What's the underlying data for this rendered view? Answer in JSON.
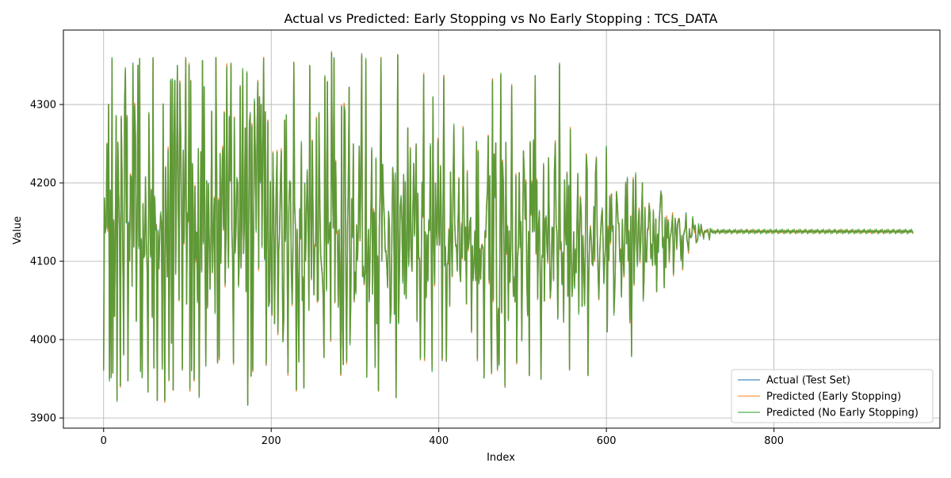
{
  "chart_data": {
    "type": "line",
    "title": "Actual vs Predicted: Early Stopping vs No Early Stopping : TCS_DATA",
    "xlabel": "Index",
    "ylabel": "Value",
    "xlim": [
      -48,
      998
    ],
    "ylim": [
      3887,
      4395
    ],
    "x_ticks": [
      0,
      200,
      400,
      600,
      800
    ],
    "y_ticks": [
      3900,
      4000,
      4100,
      4200,
      4300
    ],
    "grid": true,
    "legend_position": "lower right",
    "n_points": 951,
    "x": "0..950",
    "series": [
      {
        "name": "Actual (Test Set)",
        "color": "#1f77b4",
        "alpha": 0.7,
        "values": [
          3963,
          4180,
          4138,
          4143,
          4250,
          4140,
          4300,
          3950,
          4190,
          3953,
          4358,
          3958,
          4150,
          4030,
          4149,
          4285,
          3923,
          4250,
          4186,
          4138,
          3941,
          4285,
          4210,
          4100,
          3980,
          4300,
          4344,
          4149,
          4286,
          3947,
          4150,
          4100,
          4210,
          4205,
          4068,
          4353,
          4118,
          4300,
          4260,
          4024,
          4150,
          4350,
          4119,
          4358,
          3961,
          4127,
          3952,
          4171,
          4105,
          4110,
          4207,
          4130,
          4086,
          3934,
          4287,
          4187,
          4108,
          4190,
          4030,
          4358,
          3965,
          4180,
          4140,
          4147,
          3922,
          4140,
          4090,
          4133,
          4160,
          4148,
          3965,
          4300,
          4100,
          3921,
          4220,
          4150,
          4080,
          4244,
          3948,
          4150,
          4330,
          3996,
          4330,
          3936,
          4260,
          4330,
          4085,
          4201,
          4350,
          4180,
          4051,
          4330,
          4260,
          4160,
          3961,
          4242,
          4122,
          4200,
          4360,
          4045,
          4162,
          4150,
          4351,
          3935,
          4330,
          3963,
          4224,
          4166,
          3948,
          4196,
          4101,
          4137,
          4050,
          4243,
          3928,
          4090,
          4240,
          4086,
          4356,
          4125,
          4322,
          4110,
          3966,
          4203,
          4040,
          4199,
          4130,
          4064,
          4128,
          4290,
          4087,
          4135,
          4180,
          4036,
          4359,
          4202,
          3970,
          4178,
          3975,
          4237,
          4100,
          4189,
          4245,
          4140,
          4290,
          4069,
          4130,
          4350,
          4150,
          4093,
          4283,
          4203,
          4350,
          4142,
          4102,
          3970,
          4284,
          4110,
          4142,
          4204,
          4200,
          4070,
          4110,
          4324,
          4091,
          4152,
          4343,
          4110,
          4152,
          4269,
          4063,
          4340,
          3917,
          4131,
          4276,
          4290,
          3953,
          4274,
          3960,
          4140,
          4304,
          4235,
          4140,
          4253,
          4330,
          4090,
          4310,
          4200,
          4300,
          4120,
          4252,
          4360,
          4102,
          4291,
          3967,
          4140,
          4280,
          4042,
          4050,
          4200,
          4103,
          4031,
          4238,
          4177,
          4020,
          4129,
          4193,
          4240,
          4007,
          4114,
          4138,
          4200,
          4242,
          4123,
          3998,
          4026,
          4280,
          4128,
          4286,
          4115,
          3956,
          4162,
          4200,
          4200,
          4088,
          4045,
          4120,
          4352,
          4170,
          4140,
          3936,
          4141,
          4074,
          3973,
          4165,
          4130,
          4250,
          4050,
          4080,
          3938,
          4200,
          4100,
          4151,
          4214,
          4158,
          4040,
          4349,
          4170,
          4077,
          4254,
          4152,
          4057,
          4120,
          4120,
          4283,
          4049,
          4051,
          4287,
          4180,
          4110,
          4094,
          4083,
          4053,
          3978,
          4334,
          4139,
          4065,
          4328,
          4124,
          4133,
          4150,
          3998,
          4366,
          4210,
          4142,
          4360,
          4047,
          4227,
          4136,
          4138,
          4044,
          4140,
          4072,
          3955,
          4298,
          4014,
          3968,
          4300,
          4290,
          4100,
          3971,
          4140,
          4196,
          4322,
          3996,
          4050,
          4180,
          4130,
          4250,
          4048,
          4086,
          4061,
          4145,
          4103,
          4138,
          4247,
          4126,
          4209,
          4365,
          4080,
          4094,
          4070,
          4087,
          4356,
          3952,
          4100,
          4140,
          4050,
          4107,
          4165,
          4242,
          4058,
          4165,
          4161,
          3966,
          4230,
          4021,
          4104,
          3935,
          4143,
          4190,
          4360,
          4100,
          4224,
          4179,
          4154,
          4115,
          4112,
          4094,
          4066,
          4164,
          4149,
          4021,
          4040,
          4130,
          4220,
          4199,
          4033,
          4210,
          3926,
          4136,
          4363,
          4022,
          4084,
          4170,
          4181,
          4151,
          4075,
          4210,
          4059,
          4200,
          4053,
          4115,
          4270,
          4096,
          4123,
          4245,
          4105,
          4088,
          4163,
          4225,
          4135,
          4185,
          4250,
          4023,
          4187,
          4103,
          4102,
          3977,
          4092,
          4201,
          4156,
          4338,
          3974,
          4137,
          4056,
          4133,
          4076,
          4151,
          4140,
          4247,
          4104,
          3962,
          4309,
          4127,
          4070,
          4200,
          4140,
          4121,
          4256,
          4137,
          4122,
          4220,
          4154,
          3973,
          4155,
          4337,
          4094,
          4119,
          3972,
          4097,
          4097,
          4140,
          4045,
          4213,
          4128,
          4080,
          4196,
          4272,
          4147,
          4122,
          4120,
          4089,
          4152,
          4206,
          4088,
          4074,
          4147,
          4104,
          4271,
          4180,
          4102,
          4141,
          4046,
          4215,
          4115,
          4125,
          4148,
          4156,
          4009,
          4120,
          4078,
          4097,
          4139,
          4075,
          4253,
          3973,
          4240,
          4074,
          4115,
          4079,
          4119,
          4120,
          4115,
          3951,
          4139,
          4130,
          4170,
          4190,
          4260,
          4073,
          4209,
          4026,
          3957,
          4332,
          4050,
          4237,
          4181,
          4251,
          4052,
          3962,
          4040,
          3967,
          4127,
          4337,
          4035,
          4229,
          4200,
          4103,
          3939,
          4252,
          4109,
          4144,
          4027,
          4138,
          4075,
          4120,
          4324,
          4112,
          4055,
          4080,
          4048,
          4210,
          3970,
          4103,
          4120,
          4213,
          4120,
          4150,
          4000,
          4115,
          4241,
          4212,
          4154,
          4203,
          4075,
          4032,
          4136,
          3955,
          4250,
          4160,
          4202,
          4137,
          4255,
          4138,
          4337,
          4109,
          4203,
          4054,
          4145,
          4165,
          4078,
          3950,
          4105,
          4105,
          4225,
          4049,
          4153,
          4156,
          4120,
          4099,
          4232,
          4127,
          4053,
          4072,
          4142,
          4143,
          4075,
          4215,
          4253,
          4147,
          4136,
          4026,
          4116,
          4350,
          4116,
          4125,
          4070,
          4112,
          4022,
          4204,
          4139,
          4121,
          4214,
          4055,
          4197,
          3961,
          4269,
          4116,
          4055,
          4085,
          4137,
          4067,
          4114,
          4086,
          4155,
          4212,
          4035,
          4137,
          4182,
          4160,
          4043,
          4130,
          4093,
          4046,
          4134,
          4237,
          4216,
          3955,
          4080,
          4129,
          4145,
          4126,
          4098,
          4094,
          4170,
          4100,
          4211,
          4233,
          4137,
          4090,
          4051,
          4109,
          4133,
          4155,
          4168,
          4127,
          4073,
          4101,
          4120,
          4244,
          4010,
          4143,
          4101,
          4183,
          4124,
          4186,
          4138,
          4145,
          4034,
          4062,
          4116,
          4187,
          4175,
          4148,
          4148,
          4102,
          4114,
          4056,
          4152,
          4103,
          4080,
          4140,
          4201,
          4122,
          4207,
          4100,
          4138,
          4022,
          4157,
          3981,
          4149,
          4205,
          4070,
          4136,
          4210,
          4121,
          4096,
          4146,
          4167,
          4100,
          4126,
          4159,
          4200,
          4052,
          4080,
          4169,
          4099,
          4100,
          4139,
          4142,
          4174,
          4160,
          4105,
          4120,
          4096,
          4163,
          4128,
          4098,
          4153,
          4063,
          4133,
          4112,
          4150,
          4168,
          4190,
          4183,
          4119,
          4129,
          4067,
          4153,
          4092,
          4156,
          4130,
          4152,
          4100,
          4130,
          4134,
          4145,
          4161,
          4083,
          4114,
          4153,
          4143,
          4115,
          4148,
          4154,
          4153,
          4133,
          4101,
          4133,
          4089,
          4133,
          4139,
          4141,
          4162,
          4128,
          4122,
          4111,
          4141,
          4133,
          4130,
          4134,
          4155,
          4144,
          4138,
          4146,
          4126,
          4125,
          4129,
          4146,
          4136,
          4132,
          4147,
          4140,
          4136,
          4130,
          4137,
          4138,
          4137,
          4139,
          4141,
          4133,
          4129,
          4140,
          4139,
          4138,
          4136,
          4139,
          4138,
          4137,
          4137,
          4138,
          4138,
          4138,
          4138,
          4138,
          4138,
          4138,
          4138,
          4138,
          4138,
          4138,
          4138,
          4138,
          4138,
          4138,
          4138,
          4138,
          4138,
          4138,
          4138,
          4138,
          4138,
          4138,
          4138,
          4138,
          4138,
          4138,
          4138,
          4138,
          4138,
          4138,
          4138,
          4138,
          4138,
          4138,
          4138,
          4138,
          4138,
          4138,
          4138,
          4138,
          4138,
          4138,
          4138,
          4138,
          4138,
          4138,
          4138,
          4138,
          4138,
          4138,
          4138,
          4138,
          4138,
          4138,
          4138,
          4138,
          4138,
          4138,
          4138,
          4138,
          4138,
          4138,
          4138,
          4138,
          4138,
          4138,
          4138,
          4138,
          4138,
          4138,
          4138,
          4138,
          4138,
          4138,
          4138,
          4138,
          4138,
          4138,
          4138,
          4138,
          4138,
          4138,
          4138,
          4138,
          4138,
          4138,
          4138,
          4138,
          4138,
          4138,
          4138,
          4138,
          4138,
          4138,
          4138,
          4138,
          4138,
          4138,
          4138,
          4138,
          4138,
          4138,
          4138,
          4138,
          4138,
          4138,
          4138,
          4138,
          4138,
          4138,
          4138,
          4138,
          4138,
          4138,
          4138,
          4138,
          4138,
          4138,
          4138,
          4138,
          4138,
          4138,
          4138,
          4138,
          4138,
          4138,
          4138,
          4138,
          4138,
          4138,
          4138,
          4138,
          4138,
          4138,
          4138,
          4138,
          4138,
          4138,
          4138,
          4138,
          4138,
          4138,
          4138,
          4138,
          4138,
          4138,
          4138,
          4138,
          4138,
          4138,
          4138,
          4138,
          4138,
          4138,
          4138,
          4138,
          4138,
          4138,
          4138,
          4138,
          4138,
          4138,
          4138,
          4138,
          4138,
          4138,
          4138,
          4138,
          4138,
          4138,
          4138,
          4138,
          4138,
          4138,
          4138,
          4138,
          4138,
          4138,
          4138,
          4138,
          4138,
          4138,
          4138,
          4138,
          4138,
          4138,
          4138,
          4138,
          4138,
          4138,
          4138,
          4138,
          4138,
          4138,
          4138,
          4138,
          4138,
          4138,
          4138,
          4138,
          4138,
          4138,
          4138,
          4138,
          4138,
          4138,
          4138,
          4138,
          4138,
          4138,
          4138,
          4138,
          4138,
          4138,
          4138,
          4138,
          4138,
          4138,
          4138,
          4138,
          4138,
          4138,
          4138,
          4138,
          4138,
          4138,
          4138,
          4138,
          4138,
          4138,
          4138,
          4138,
          4138,
          4138
        ]
      },
      {
        "name": "Predicted (Early Stopping)",
        "color": "#ff7f0e",
        "alpha": 0.7,
        "values": "same_as:0"
      },
      {
        "name": "Predicted (No Early Stopping)",
        "color": "#2ca02c",
        "alpha": 0.7,
        "values": "same_as:0"
      }
    ]
  }
}
